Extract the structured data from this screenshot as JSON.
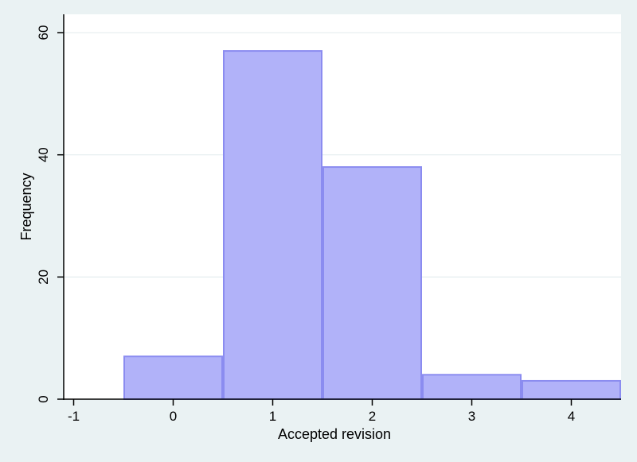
{
  "chart_data": {
    "type": "bar",
    "histogram": true,
    "title": "",
    "xlabel": "Accepted revision",
    "ylabel": "Frequency",
    "categories": [
      "0",
      "1",
      "2",
      "3",
      "4"
    ],
    "x": [
      0,
      1,
      2,
      3,
      4
    ],
    "bin_width": 1,
    "values": [
      7,
      57,
      38,
      4,
      3
    ],
    "xlim": [
      -1.1,
      4.5
    ],
    "ylim": [
      0,
      63
    ],
    "xticks": [
      "-1",
      "0",
      "1",
      "2",
      "3",
      "4"
    ],
    "yticks": [
      "0",
      "20",
      "40",
      "60"
    ],
    "grid": true,
    "legend": "none",
    "colors": {
      "page_background": "#eaf2f3",
      "plot_background": "#ffffff",
      "bar_fill": "#b1b2f9",
      "bar_edge": "#8b8cf0",
      "grid": "#e4eeef",
      "axis": "#000000"
    }
  }
}
